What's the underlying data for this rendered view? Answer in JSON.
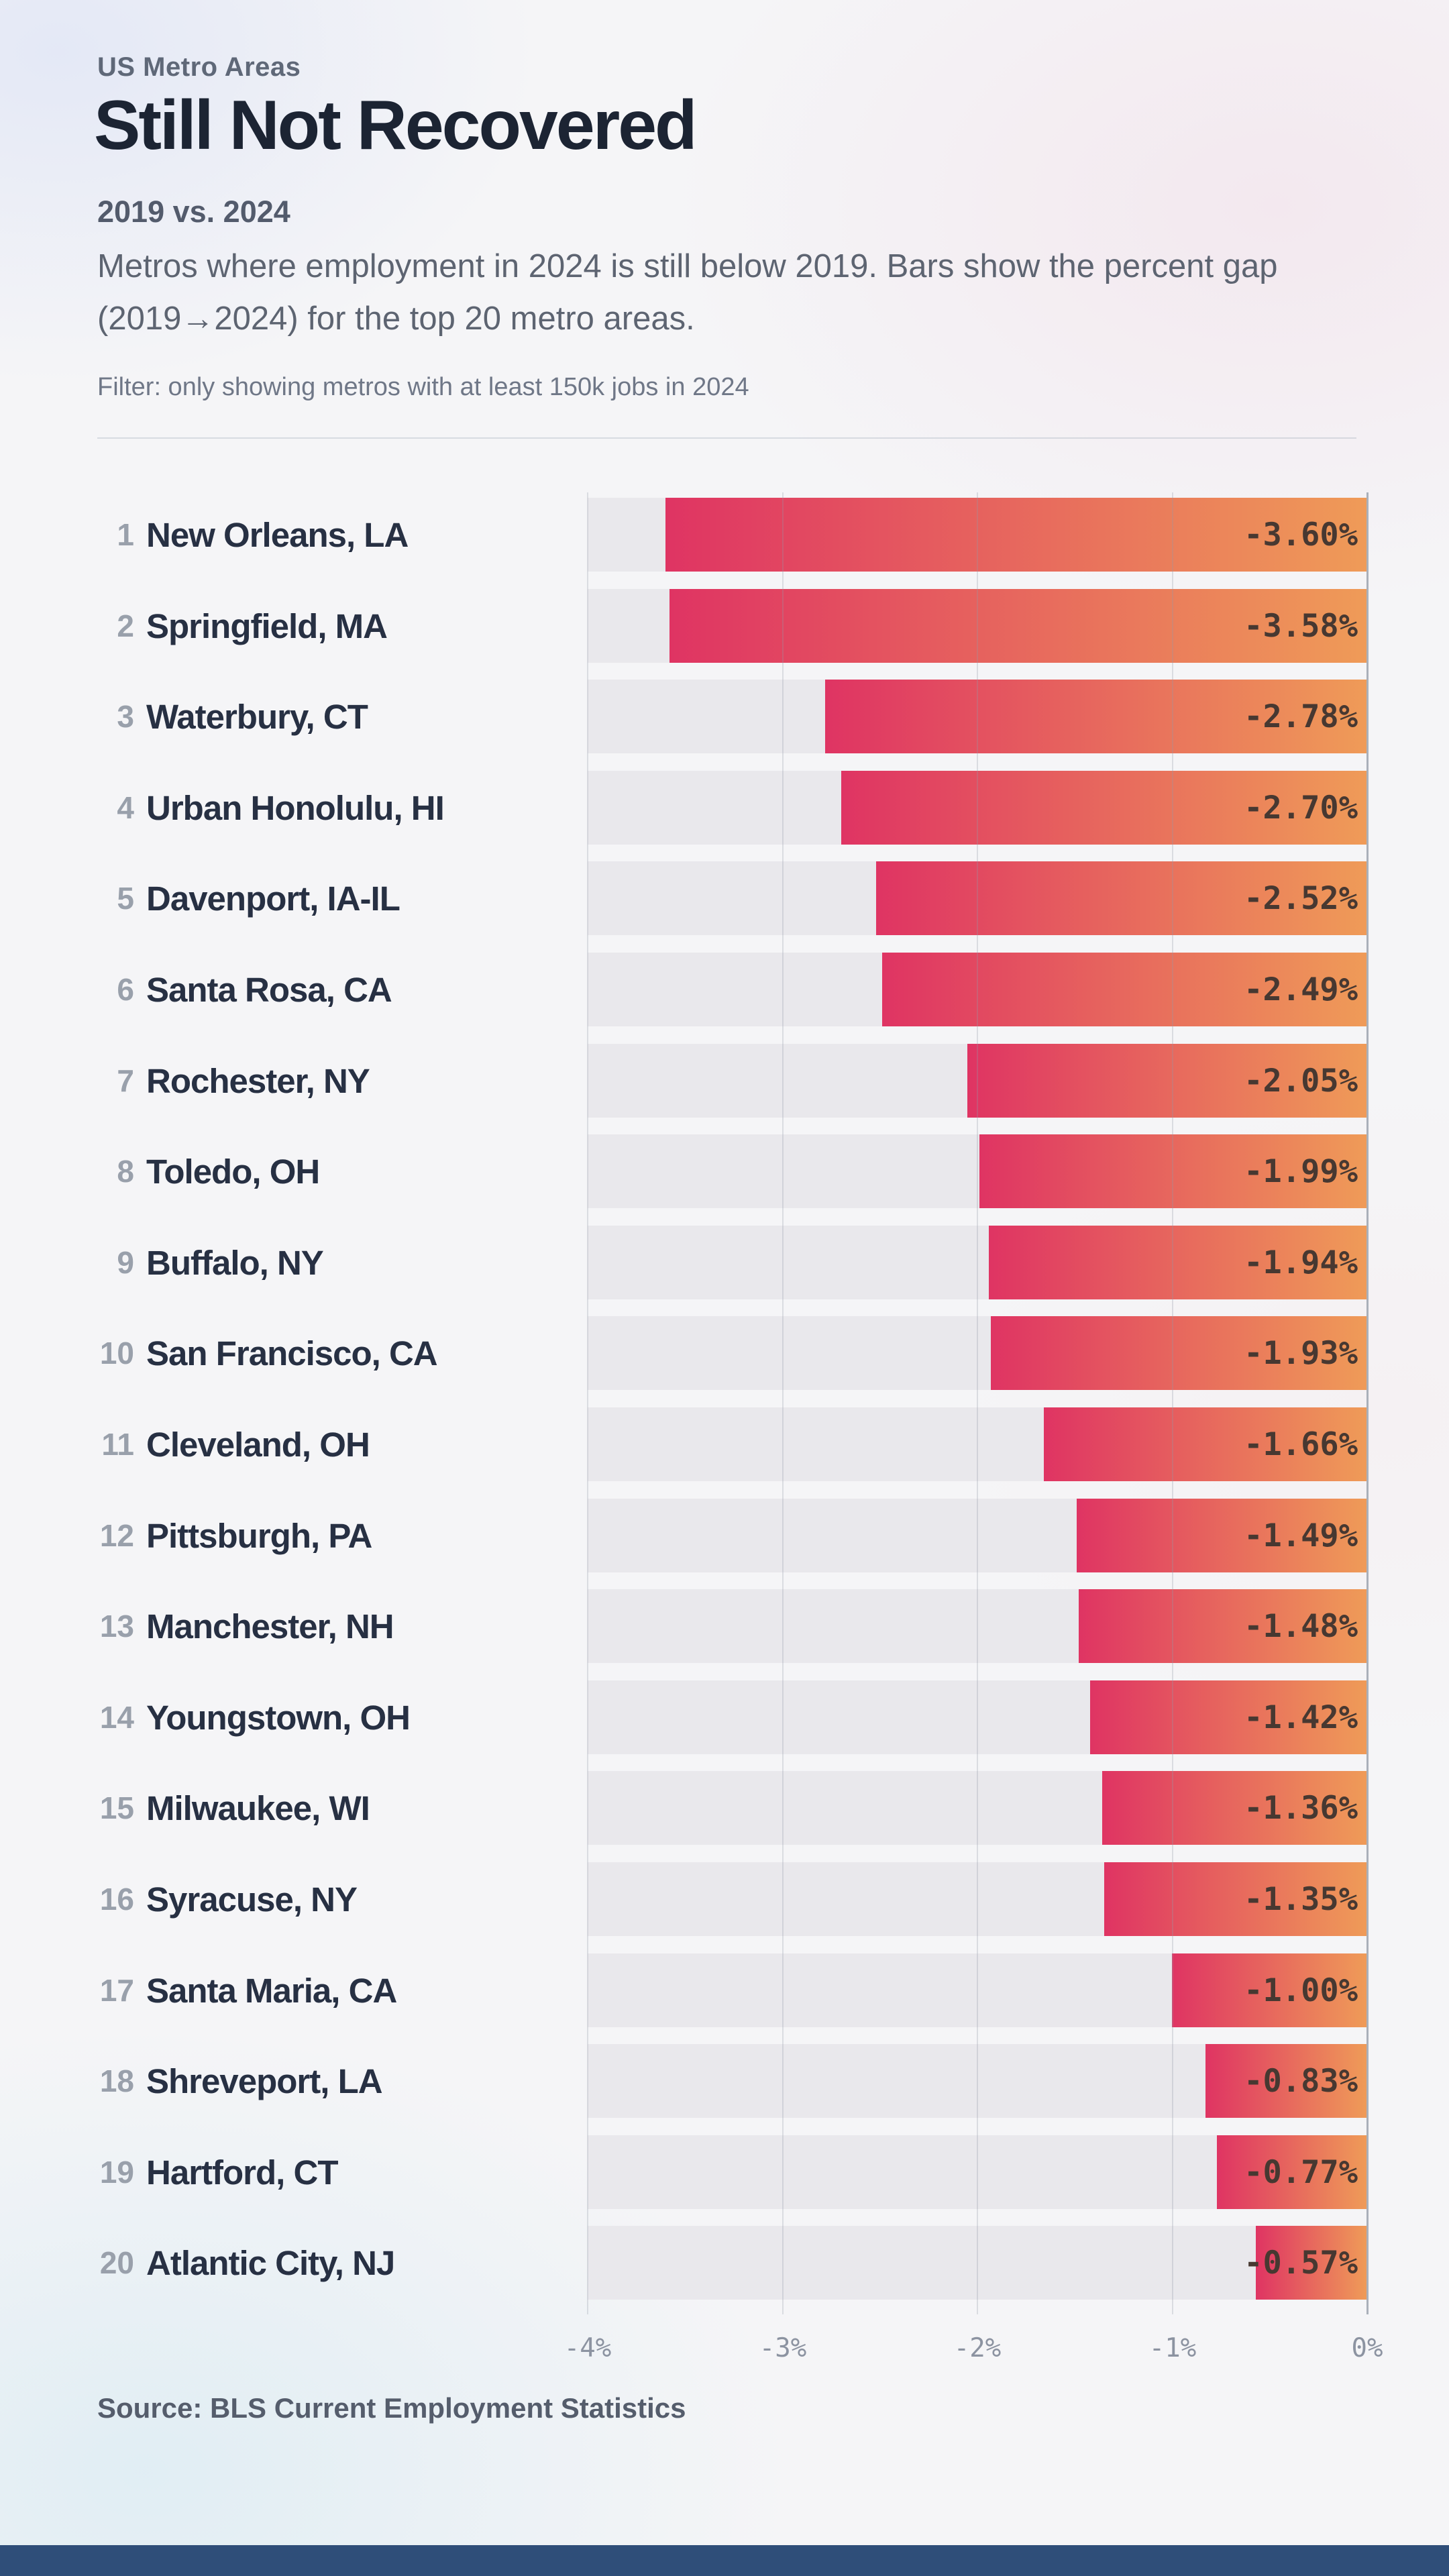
{
  "header": {
    "kicker": "US Metro Areas",
    "title": "Still Not Recovered",
    "subtitle": "2019 vs. 2024",
    "description": "Metros where employment in 2024 is still below 2019. Bars show the percent gap (2019→2024) for the top 20 metro areas.",
    "filter_note": "Filter: only showing metros with at least 150k jobs in 2024"
  },
  "chart_data": {
    "type": "bar",
    "orientation": "horizontal",
    "title": "Still Not Recovered",
    "xlabel": "",
    "ylabel": "",
    "xlim": [
      -4,
      0
    ],
    "grid": true,
    "ranks": [
      1,
      2,
      3,
      4,
      5,
      6,
      7,
      8,
      9,
      10,
      11,
      12,
      13,
      14,
      15,
      16,
      17,
      18,
      19,
      20
    ],
    "categories": [
      "New Orleans, LA",
      "Springfield, MA",
      "Waterbury, CT",
      "Urban Honolulu, HI",
      "Davenport, IA-IL",
      "Santa Rosa, CA",
      "Rochester, NY",
      "Toledo, OH",
      "Buffalo, NY",
      "San Francisco, CA",
      "Cleveland, OH",
      "Pittsburgh, PA",
      "Manchester, NH",
      "Youngstown, OH",
      "Milwaukee, WI",
      "Syracuse, NY",
      "Santa Maria, CA",
      "Shreveport, LA",
      "Hartford, CT",
      "Atlantic City, NJ"
    ],
    "values": [
      -3.6,
      -3.58,
      -2.78,
      -2.7,
      -2.52,
      -2.49,
      -2.05,
      -1.99,
      -1.94,
      -1.93,
      -1.66,
      -1.49,
      -1.48,
      -1.42,
      -1.36,
      -1.35,
      -1.0,
      -0.83,
      -0.77,
      -0.57
    ],
    "value_labels": [
      "-3.60%",
      "-3.58%",
      "-2.78%",
      "-2.70%",
      "-2.52%",
      "-2.49%",
      "-2.05%",
      "-1.99%",
      "-1.94%",
      "-1.93%",
      "-1.66%",
      "-1.49%",
      "-1.48%",
      "-1.42%",
      "-1.36%",
      "-1.35%",
      "-1.00%",
      "-0.83%",
      "-0.77%",
      "-0.57%"
    ],
    "x_tick_labels": [
      "-4%",
      "-3%",
      "-2%",
      "-1%",
      "0%"
    ],
    "x_tick_values": [
      -4,
      -3,
      -2,
      -1,
      0
    ],
    "legend": "none",
    "colors": {
      "bar_gradient_start": "#df3463",
      "bar_gradient_end": "#ef9b58",
      "track": "#e9e8ec",
      "value_text": "#473831",
      "axis_line": "#aab0ba",
      "gridline": "rgba(146,153,170,0.28)",
      "metro_name": "#273043",
      "rank": "#99a0ab"
    }
  },
  "source": "Source: BLS Current Employment Statistics",
  "footer_bar_color": "#2f4e79"
}
